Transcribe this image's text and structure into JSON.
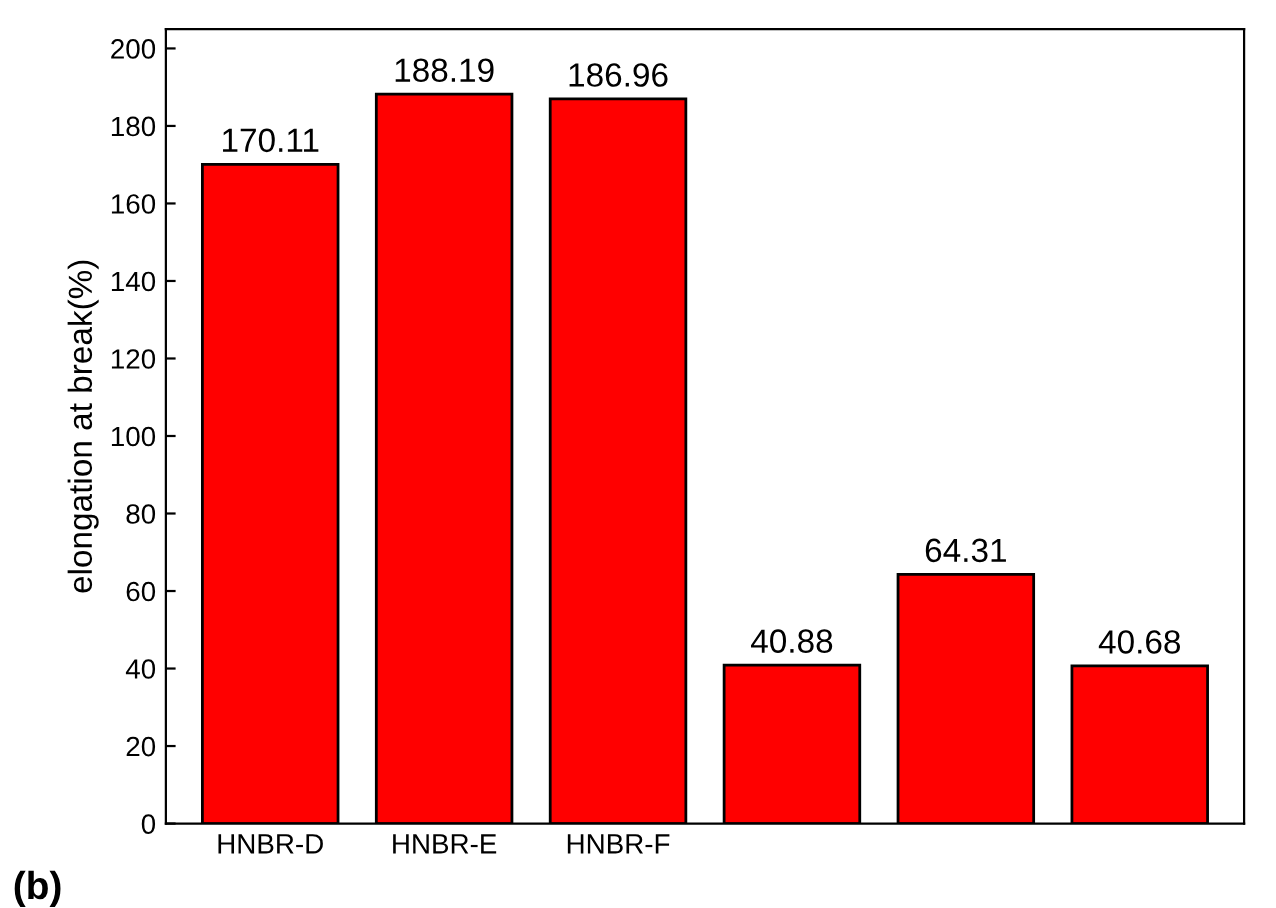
{
  "chart_data": {
    "type": "bar",
    "ylabel": "elongation at break(%)",
    "categories": [
      "HNBR-D",
      "HNBR-E",
      "HNBR-F",
      null,
      null,
      null
    ],
    "values": [
      170.11,
      188.19,
      186.96,
      40.88,
      64.31,
      40.68
    ],
    "color": "#ff0000",
    "data_labels": true,
    "ylim": [
      0,
      205
    ],
    "yticks": [
      0,
      20,
      40,
      60,
      80,
      100,
      120,
      140,
      160,
      180,
      200
    ],
    "grid": false,
    "annotations": [
      "(b)"
    ]
  }
}
